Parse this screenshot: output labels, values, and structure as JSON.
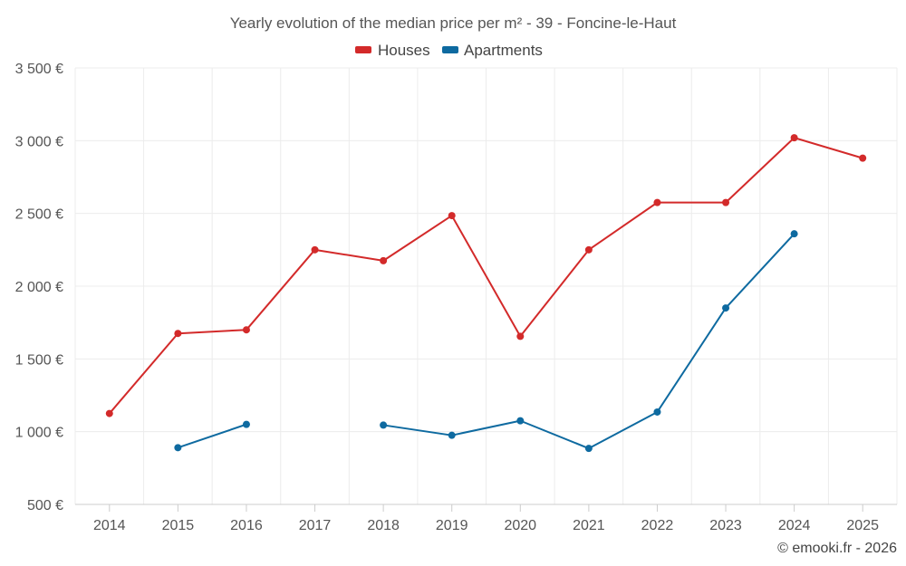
{
  "chart_data": {
    "type": "line",
    "title": "Yearly evolution of the median price per m² - 39 - Foncine-le-Haut",
    "categories": [
      "2014",
      "2015",
      "2016",
      "2017",
      "2018",
      "2019",
      "2020",
      "2021",
      "2022",
      "2023",
      "2024",
      "2025"
    ],
    "y_ticks": [
      "500 €",
      "1 000 €",
      "1 500 €",
      "2 000 €",
      "2 500 €",
      "3 000 €",
      "3 500 €"
    ],
    "ylim": [
      500,
      3500
    ],
    "grid": true,
    "legend_position": "top-center",
    "series": [
      {
        "name": "Houses",
        "color": "#d32a2a",
        "values": [
          1125,
          1675,
          1700,
          2250,
          2175,
          2485,
          1655,
          2250,
          2575,
          2575,
          3020,
          2880
        ]
      },
      {
        "name": "Apartments",
        "color": "#0e6aa0",
        "values": [
          null,
          890,
          1050,
          null,
          1045,
          975,
          1075,
          885,
          1135,
          1850,
          2360,
          null
        ]
      }
    ]
  },
  "footer": {
    "credit": "© emooki.fr - 2026"
  }
}
